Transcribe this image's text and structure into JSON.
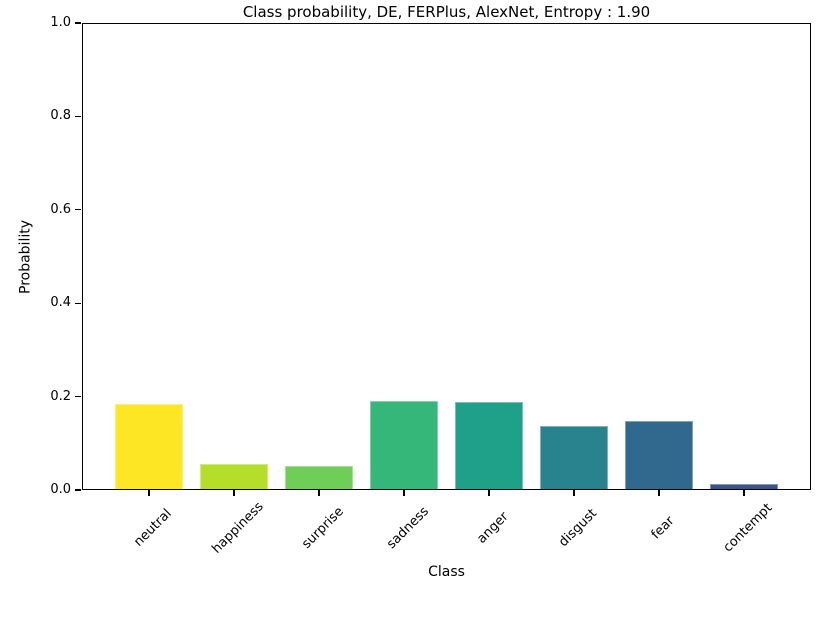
{
  "chart_data": {
    "type": "bar",
    "title": "Class probability, DE, FERPlus, AlexNet, Entropy : 1.90",
    "xlabel": "Class",
    "ylabel": "Probability",
    "categories": [
      "neutral",
      "happiness",
      "surprise",
      "sadness",
      "anger",
      "disgust",
      "fear",
      "contempt"
    ],
    "values": [
      0.185,
      0.056,
      0.051,
      0.19,
      0.188,
      0.137,
      0.148,
      0.012
    ],
    "colors": [
      "#fde725",
      "#b5de2b",
      "#6ece58",
      "#35b779",
      "#1fa088",
      "#28838e",
      "#31688e",
      "#3b528b"
    ],
    "ylim": [
      0,
      1
    ],
    "yticks": [
      0.0,
      0.2,
      0.4,
      0.6,
      0.8,
      1.0
    ],
    "ytick_labels": [
      "0.0",
      "0.2",
      "0.4",
      "0.6",
      "0.8",
      "1.0"
    ],
    "grid": false,
    "legend": null,
    "background": "#ffffff",
    "axis_color": "#000000"
  }
}
